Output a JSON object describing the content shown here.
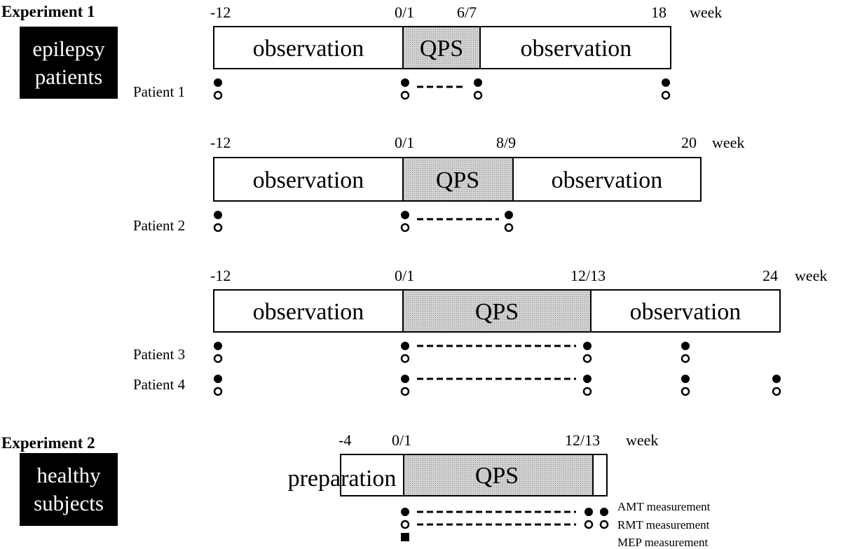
{
  "experiment1": {
    "title": "Experiment 1",
    "group_line1": "epilepsy",
    "group_line2": "patients",
    "timelines": [
      {
        "ticks": [
          "-12",
          "0/1",
          "6/7",
          "18"
        ],
        "unit": "week",
        "segments": [
          "observation",
          "QPS",
          "observation"
        ],
        "patients": [
          {
            "label": "Patient 1"
          }
        ]
      },
      {
        "ticks": [
          "-12",
          "0/1",
          "8/9",
          "20"
        ],
        "unit": "week",
        "segments": [
          "observation",
          "QPS",
          "observation"
        ],
        "patients": [
          {
            "label": "Patient 2"
          }
        ]
      },
      {
        "ticks": [
          "-12",
          "0/1",
          "12/13",
          "24"
        ],
        "unit": "week",
        "segments": [
          "observation",
          "QPS",
          "observation"
        ],
        "patients": [
          {
            "label": "Patient 3"
          },
          {
            "label": "Patient 4"
          }
        ]
      }
    ]
  },
  "experiment2": {
    "title": "Experiment 2",
    "group_line1": "healthy",
    "group_line2": "subjects",
    "ticks": [
      "-4",
      "0/1",
      "12/13"
    ],
    "unit": "week",
    "segments": [
      "preparation",
      "QPS"
    ],
    "legend": [
      "AMT measurement",
      "RMT measurement",
      "MEP measurement"
    ]
  },
  "colors": {
    "qps_fill": "#c8c8c8",
    "ink": "#000000",
    "background": "#ffffff"
  }
}
